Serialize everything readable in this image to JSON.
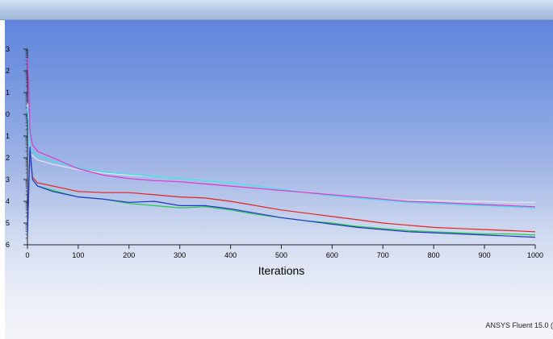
{
  "app": {
    "footer_text": "ANSYS Fluent 15.0 ("
  },
  "chart_data": {
    "type": "line",
    "title": "",
    "xlabel": "Iterations",
    "ylabel": "",
    "xlim": [
      0,
      1000
    ],
    "ylim": [
      -6,
      3
    ],
    "y_scale": "log10",
    "x_ticks": [
      0,
      100,
      200,
      300,
      400,
      500,
      600,
      700,
      800,
      900,
      1000
    ],
    "x_tick_labels": [
      "0",
      "100",
      "200",
      "300",
      "400",
      "500",
      "600",
      "700",
      "800",
      "900",
      "1000"
    ],
    "y_ticks": [
      3,
      2,
      1,
      0,
      -1,
      -2,
      -3,
      -4,
      -5,
      -6
    ],
    "y_tick_labels": [
      "3",
      "2",
      "1",
      "0",
      "1",
      "2",
      "3",
      "4",
      "5",
      "6"
    ],
    "grid": false,
    "legend": "none",
    "series": [
      {
        "color": "#e6e6f0",
        "x": [
          0,
          5,
          10,
          20,
          50,
          100,
          150,
          200,
          250,
          300,
          350,
          400,
          450,
          500,
          550,
          600,
          650,
          700,
          750,
          800,
          850,
          900,
          950,
          1000
        ],
        "y": [
          0.5,
          -1.8,
          -1.9,
          -2.1,
          -2.3,
          -2.55,
          -2.7,
          -2.8,
          -2.85,
          -2.95,
          -3.05,
          -3.15,
          -3.3,
          -3.45,
          -3.6,
          -3.7,
          -3.8,
          -3.9,
          -3.95,
          -3.95,
          -4.0,
          -4.0,
          -4.05,
          -4.05
        ]
      },
      {
        "color": "#33e6e6",
        "x": [
          0,
          5,
          10,
          20,
          50,
          100,
          150,
          200,
          250,
          300,
          350,
          400,
          450,
          500,
          550,
          600,
          650,
          700,
          750,
          800,
          850,
          900,
          950,
          1000
        ],
        "y": [
          0.3,
          -1.5,
          -1.7,
          -1.9,
          -2.15,
          -2.45,
          -2.65,
          -2.75,
          -2.85,
          -2.95,
          -3.05,
          -3.15,
          -3.3,
          -3.45,
          -3.6,
          -3.75,
          -3.85,
          -3.95,
          -4.05,
          -4.1,
          -4.15,
          -4.2,
          -4.25,
          -4.3
        ]
      },
      {
        "color": "#e633cc",
        "x": [
          0,
          3,
          5,
          10,
          20,
          50,
          100,
          150,
          200,
          250,
          300,
          350,
          400,
          450,
          500,
          550,
          600,
          650,
          700,
          750,
          800,
          850,
          900,
          950,
          1000
        ],
        "y": [
          2.6,
          1.0,
          -0.8,
          -1.4,
          -1.7,
          -2.0,
          -2.5,
          -2.8,
          -2.95,
          -3.05,
          -3.1,
          -3.2,
          -3.3,
          -3.4,
          -3.5,
          -3.6,
          -3.7,
          -3.8,
          -3.9,
          -4.0,
          -4.05,
          -4.1,
          -4.15,
          -4.2,
          -4.25
        ]
      },
      {
        "color": "#e62222",
        "x": [
          0,
          5,
          10,
          20,
          50,
          100,
          150,
          200,
          250,
          300,
          350,
          400,
          450,
          500,
          550,
          600,
          650,
          700,
          750,
          800,
          850,
          900,
          950,
          1000
        ],
        "y": [
          -5.4,
          -1.7,
          -2.9,
          -3.15,
          -3.3,
          -3.55,
          -3.6,
          -3.6,
          -3.7,
          -3.8,
          -3.85,
          -4.0,
          -4.2,
          -4.4,
          -4.55,
          -4.7,
          -4.85,
          -5.0,
          -5.1,
          -5.2,
          -5.25,
          -5.3,
          -5.35,
          -5.4
        ]
      },
      {
        "color": "#22cc44",
        "x": [
          0,
          5,
          10,
          20,
          50,
          100,
          150,
          200,
          250,
          300,
          350,
          400,
          450,
          500,
          550,
          600,
          650,
          700,
          750,
          800,
          850,
          900,
          950,
          1000
        ],
        "y": [
          -5.5,
          -1.6,
          -3.0,
          -3.3,
          -3.5,
          -3.8,
          -3.9,
          -4.1,
          -4.2,
          -4.3,
          -4.25,
          -4.4,
          -4.6,
          -4.75,
          -4.9,
          -5.0,
          -5.15,
          -5.25,
          -5.35,
          -5.4,
          -5.45,
          -5.5,
          -5.5,
          -5.55
        ]
      },
      {
        "color": "#2233cc",
        "x": [
          0,
          5,
          10,
          20,
          50,
          100,
          150,
          200,
          250,
          300,
          350,
          400,
          450,
          500,
          550,
          600,
          650,
          700,
          750,
          800,
          850,
          900,
          950,
          1000
        ],
        "y": [
          -5.5,
          -1.5,
          -3.0,
          -3.3,
          -3.55,
          -3.8,
          -3.9,
          -4.05,
          -4.0,
          -4.2,
          -4.2,
          -4.35,
          -4.55,
          -4.75,
          -4.9,
          -5.05,
          -5.2,
          -5.3,
          -5.4,
          -5.45,
          -5.5,
          -5.55,
          -5.6,
          -5.65
        ]
      }
    ]
  }
}
